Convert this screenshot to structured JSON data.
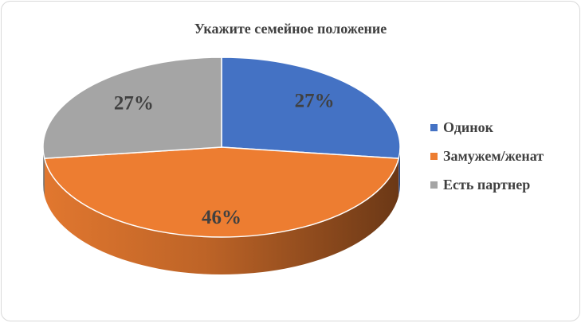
{
  "chart_data": {
    "type": "pie",
    "title": "Укажите семейное положение",
    "labels": [
      "Одинок",
      "Замужем/женат",
      "Есть партнер"
    ],
    "values": [
      27,
      46,
      27
    ],
    "value_labels": [
      "27%",
      "46%",
      "27%"
    ],
    "colors": [
      "#4472C4",
      "#ED7D31",
      "#A5A5A5"
    ],
    "style": "3d",
    "legend": "right"
  }
}
